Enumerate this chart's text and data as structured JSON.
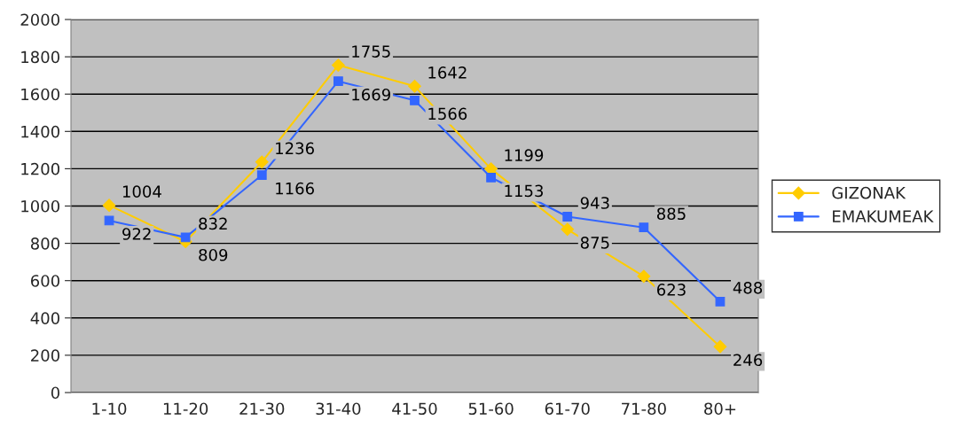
{
  "chart_data": {
    "type": "line",
    "categories": [
      "1-10",
      "11-20",
      "21-30",
      "31-40",
      "41-50",
      "51-60",
      "61-70",
      "71-80",
      "80+"
    ],
    "series": [
      {
        "name": "GIZONAK",
        "color": "#ffcc00",
        "marker": "diamond",
        "values": [
          1004,
          809,
          1236,
          1755,
          1642,
          1199,
          875,
          623,
          246
        ]
      },
      {
        "name": "EMAKUMEAK",
        "color": "#3366ff",
        "marker": "square",
        "values": [
          922,
          832,
          1166,
          1669,
          1566,
          1153,
          943,
          885,
          488
        ]
      }
    ],
    "ylim": [
      0,
      2000
    ],
    "yticks": [
      0,
      200,
      400,
      600,
      800,
      1000,
      1200,
      1400,
      1600,
      1800,
      2000
    ],
    "grid": "y",
    "legend": "right",
    "data_labels": true
  }
}
